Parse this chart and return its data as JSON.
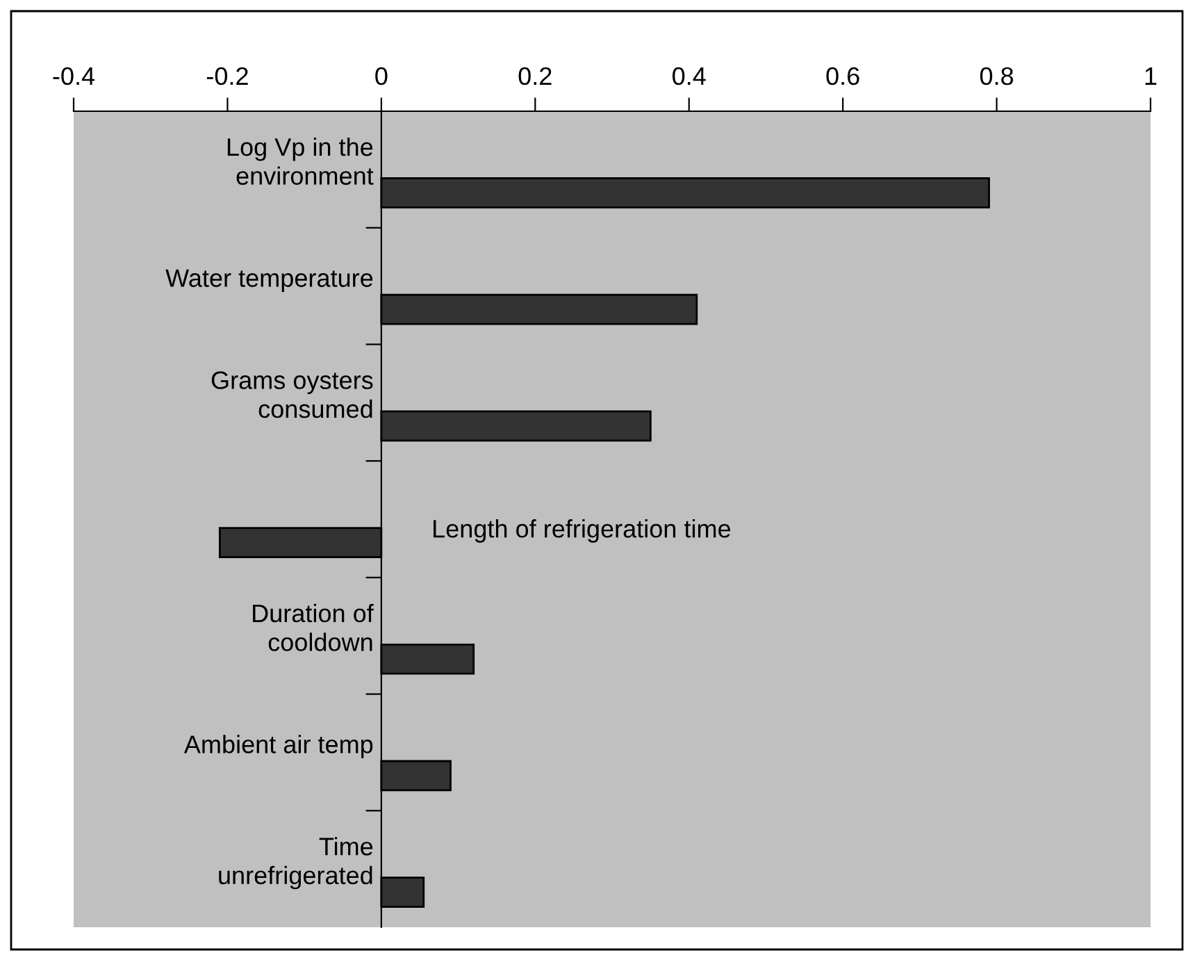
{
  "chart_data": {
    "type": "bar",
    "orientation": "horizontal",
    "categories": [
      "Log Vp in the\nenvironment",
      "Water temperature",
      "Grams oysters\nconsumed",
      "Length of refrigeration time",
      "Duration of\ncooldown",
      "Ambient air temp",
      "Time\nunrefrigerated"
    ],
    "values": [
      0.79,
      0.41,
      0.35,
      -0.21,
      0.12,
      0.09,
      0.055
    ],
    "color": "#333333",
    "xlim": [
      -0.4,
      1
    ],
    "xticks": [
      -0.4,
      -0.2,
      0,
      0.2,
      0.4,
      0.6,
      0.8,
      1
    ],
    "grid": false,
    "legend": false
  }
}
